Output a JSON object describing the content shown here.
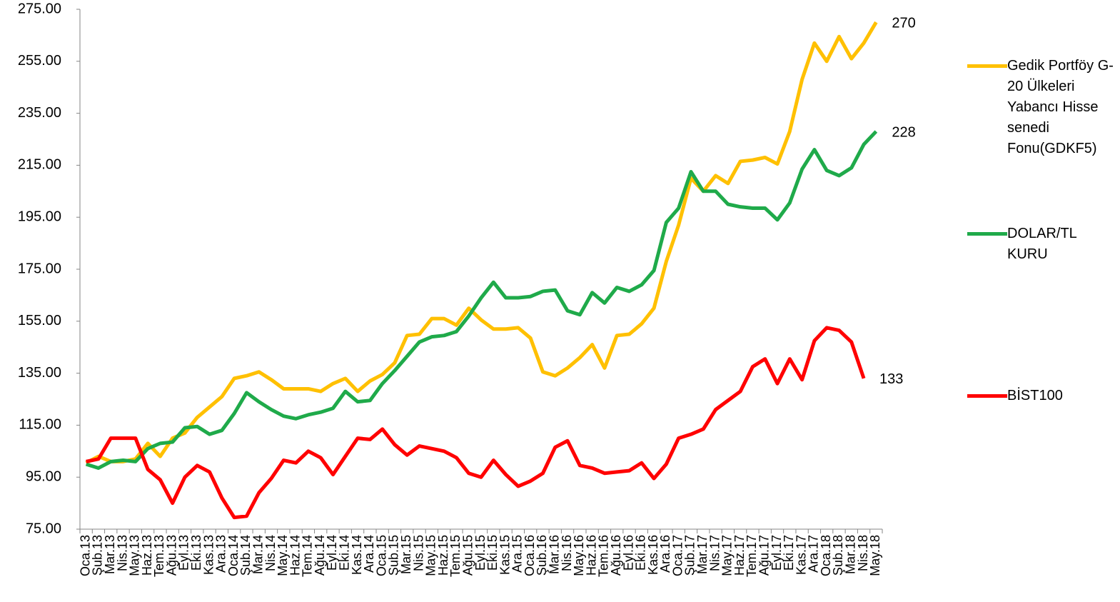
{
  "chart_data": {
    "type": "line",
    "categories": [
      "Oca.13",
      "Şub.13",
      "Mar.13",
      "Nis.13",
      "May.13",
      "Haz.13",
      "Tem.13",
      "Ağu.13",
      "Eyl.13",
      "Eki.13",
      "Kas.13",
      "Ara.13",
      "Oca.14",
      "Şub.14",
      "Mar.14",
      "Nis.14",
      "May.14",
      "Haz.14",
      "Tem.14",
      "Ağu.14",
      "Eyl.14",
      "Eki.14",
      "Kas.14",
      "Ara.14",
      "Oca.15",
      "Şub.15",
      "Mar.15",
      "Nis.15",
      "May.15",
      "Haz.15",
      "Tem.15",
      "Ağu.15",
      "Eyl.15",
      "Eki.15",
      "Kas.15",
      "Ara.15",
      "Oca.16",
      "Şub.16",
      "Mar.16",
      "Nis.16",
      "May.16",
      "Haz.16",
      "Tem.16",
      "Ağu.16",
      "Eyl.16",
      "Eki.16",
      "Kas.16",
      "Ara.16",
      "Oca.17",
      "Şub.17",
      "Mar.17",
      "Nis.17",
      "May.17",
      "Haz.17",
      "Tem.17",
      "Ağu.17",
      "Eyl.17",
      "Eki.17",
      "Kas.17",
      "Ara.17",
      "Oca.18",
      "Şub.18",
      "Mar.18",
      "Nis.18",
      "May.18"
    ],
    "series": [
      {
        "name": "Gedik Portföy G-20 Ülkeleri Yabancı Hisse senedi Fonu(GDKF5)",
        "color": "#ffc000",
        "values": [
          100.5,
          103,
          101,
          101,
          102,
          108,
          103,
          110,
          112,
          118,
          122,
          126,
          133,
          134,
          135.5,
          132.5,
          129,
          129,
          129,
          128,
          131,
          133,
          128,
          132,
          134.5,
          139,
          149.5,
          150,
          156,
          156,
          153.5,
          160,
          155.5,
          152,
          152,
          152.5,
          148.5,
          135.5,
          134,
          137,
          141,
          146,
          137,
          149.5,
          150,
          154,
          160,
          178,
          192,
          210,
          205,
          211,
          208,
          216.5,
          217,
          218,
          215.5,
          228,
          248,
          262,
          255,
          264.5,
          256,
          262,
          270
        ],
        "value_labels": [
          null,
          null,
          null,
          null,
          null,
          null,
          null,
          null,
          null,
          null,
          null,
          null,
          null,
          null,
          null,
          null,
          null,
          null,
          null,
          null,
          null,
          null,
          null,
          null,
          null,
          null,
          null,
          null,
          null,
          null,
          null,
          null,
          null,
          null,
          null,
          null,
          null,
          null,
          null,
          null,
          null,
          null,
          null,
          null,
          null,
          null,
          null,
          null,
          null,
          null,
          null,
          null,
          null,
          null,
          null,
          null,
          null,
          null,
          null,
          null,
          null,
          null,
          null,
          null,
          "270"
        ]
      },
      {
        "name": "DOLAR/TL KURU",
        "color": "#1faa4a",
        "values": [
          100,
          98.5,
          101,
          101.5,
          101,
          106,
          108,
          108.5,
          114,
          114.5,
          111.5,
          113,
          119.5,
          127.5,
          124,
          121,
          118.5,
          117.5,
          119,
          120,
          121.5,
          128,
          124,
          124.5,
          131,
          136,
          141.5,
          147,
          149,
          149.5,
          151,
          157,
          164,
          170,
          164,
          164,
          164.5,
          166.5,
          167,
          159,
          157.5,
          166,
          162,
          168,
          166.5,
          169,
          174.5,
          193,
          198.5,
          212.5,
          205,
          205,
          200,
          199,
          198.5,
          198.5,
          194,
          200.5,
          213.5,
          221,
          213,
          211,
          214,
          223,
          228
        ],
        "value_labels": [
          null,
          null,
          null,
          null,
          null,
          null,
          null,
          null,
          null,
          null,
          null,
          null,
          null,
          null,
          null,
          null,
          null,
          null,
          null,
          null,
          null,
          null,
          null,
          null,
          null,
          null,
          null,
          null,
          null,
          null,
          null,
          null,
          null,
          null,
          null,
          null,
          null,
          null,
          null,
          null,
          null,
          null,
          null,
          null,
          null,
          null,
          null,
          null,
          null,
          null,
          null,
          null,
          null,
          null,
          null,
          null,
          null,
          null,
          null,
          null,
          null,
          null,
          null,
          null,
          "228"
        ]
      },
      {
        "name": "BİST100",
        "color": "#ff0000",
        "values": [
          101,
          102,
          110,
          110,
          110,
          98,
          94,
          85,
          95,
          99.5,
          97,
          87,
          79.5,
          80,
          89,
          94.5,
          101.5,
          100.5,
          105,
          102.5,
          96,
          103,
          110,
          109.5,
          113.5,
          107.5,
          103.5,
          107,
          106,
          105,
          102.5,
          96.5,
          95,
          101.5,
          96,
          91.5,
          93.5,
          96.5,
          106.5,
          109,
          99.5,
          98.5,
          96.5,
          97,
          97.5,
          100.5,
          94.5,
          100,
          110,
          111.5,
          113.5,
          121,
          124.5,
          128,
          137.5,
          140.5,
          131,
          140.5,
          132.5,
          147.5,
          152.5,
          151.5,
          147,
          133,
          null
        ],
        "value_labels": [
          null,
          null,
          null,
          null,
          null,
          null,
          null,
          null,
          null,
          null,
          null,
          null,
          null,
          null,
          null,
          null,
          null,
          null,
          null,
          null,
          null,
          null,
          null,
          null,
          null,
          null,
          null,
          null,
          null,
          null,
          null,
          null,
          null,
          null,
          null,
          null,
          null,
          null,
          null,
          null,
          null,
          null,
          null,
          null,
          null,
          null,
          null,
          null,
          null,
          null,
          null,
          null,
          null,
          null,
          null,
          null,
          null,
          null,
          null,
          null,
          null,
          null,
          null,
          "133",
          null
        ]
      }
    ],
    "ylim": [
      75,
      275
    ],
    "yticks": [
      {
        "value": 75,
        "label": "75.00"
      },
      {
        "value": 95,
        "label": "95.00"
      },
      {
        "value": 115,
        "label": "115.00"
      },
      {
        "value": 135,
        "label": "135.00"
      },
      {
        "value": 155,
        "label": "155.00"
      },
      {
        "value": 175,
        "label": "175.00"
      },
      {
        "value": 195,
        "label": "195.00"
      },
      {
        "value": 215,
        "label": "215.00"
      },
      {
        "value": 235,
        "label": "235.00"
      },
      {
        "value": 255,
        "label": "255.00"
      },
      {
        "value": 275,
        "label": "275.00"
      }
    ],
    "grid": false,
    "legend": "right"
  }
}
